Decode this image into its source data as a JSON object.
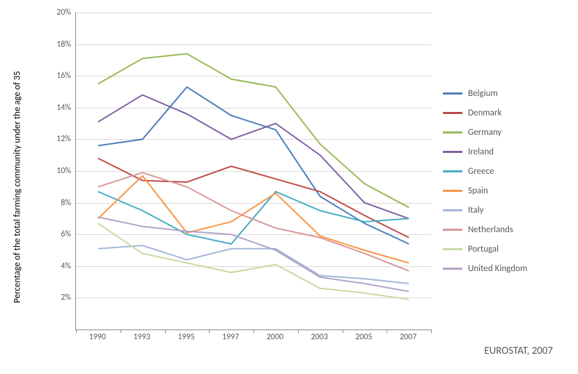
{
  "chart": {
    "type": "line",
    "y_axis_label": "Percentage of the total farming community  under the age of 35",
    "source_text": "EUROSTAT, 2007",
    "background_color": "#ffffff",
    "grid_color": "#d9d9d9",
    "axis_color": "#888888",
    "text_color": "#595959",
    "label_fontsize": 13,
    "tick_fontsize": 12,
    "ylim": [
      0,
      20
    ],
    "ytick_step": 2,
    "y_tick_labels": [
      "2%",
      "4%",
      "6%",
      "8%",
      "10%",
      "12%",
      "14%",
      "16%",
      "18%",
      "20%"
    ],
    "x_categories": [
      "1990",
      "1993",
      "1995",
      "1997",
      "2000",
      "2003",
      "2005",
      "2007"
    ],
    "line_width": 2,
    "series": [
      {
        "name": "Belgium",
        "color": "#4a7ebb",
        "values": [
          11.6,
          12.0,
          15.3,
          13.5,
          12.6,
          8.4,
          6.7,
          5.4
        ]
      },
      {
        "name": "Denmark",
        "color": "#be4b48",
        "values": [
          10.8,
          9.4,
          9.3,
          10.3,
          9.5,
          8.7,
          7.2,
          5.8
        ]
      },
      {
        "name": "Germany",
        "color": "#98b954",
        "values": [
          15.5,
          17.1,
          17.4,
          15.8,
          15.3,
          11.7,
          9.2,
          7.7
        ]
      },
      {
        "name": "Ireland",
        "color": "#7d60a0",
        "values": [
          13.1,
          14.8,
          13.6,
          12.0,
          13.0,
          11.0,
          8.0,
          7.0
        ]
      },
      {
        "name": "Greece",
        "color": "#46aac5",
        "values": [
          8.7,
          7.5,
          6.0,
          5.4,
          8.7,
          7.5,
          6.8,
          7.0
        ]
      },
      {
        "name": "Spain",
        "color": "#f79646",
        "values": [
          7.0,
          9.7,
          6.1,
          6.8,
          8.6,
          5.9,
          5.0,
          4.2
        ]
      },
      {
        "name": "Italy",
        "color": "#a0b6d7",
        "values": [
          5.1,
          5.3,
          4.4,
          5.1,
          5.1,
          3.4,
          3.2,
          2.9
        ]
      },
      {
        "name": "Netherlands",
        "color": "#d99795",
        "values": [
          9.0,
          9.9,
          9.0,
          7.5,
          6.4,
          5.8,
          4.8,
          3.7
        ]
      },
      {
        "name": "Portugal",
        "color": "#c6d9a3",
        "values": [
          6.7,
          4.8,
          4.2,
          3.6,
          4.1,
          2.6,
          2.3,
          1.9
        ]
      },
      {
        "name": "United Kingdom",
        "color": "#b3a2c7",
        "values": [
          7.1,
          6.5,
          6.2,
          6.0,
          5.0,
          3.3,
          2.9,
          2.4
        ]
      }
    ]
  }
}
